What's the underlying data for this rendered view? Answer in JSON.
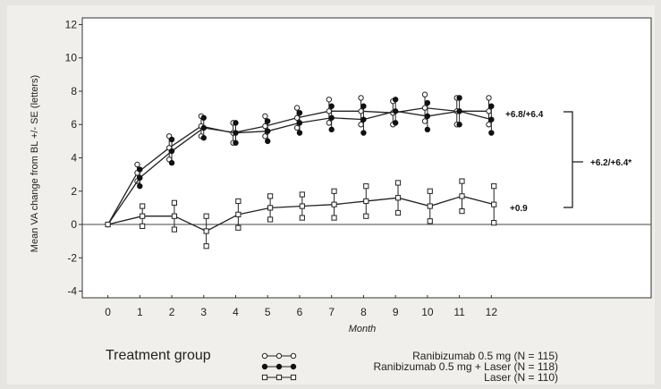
{
  "chart_data": {
    "type": "line",
    "title": "",
    "xlabel": "Month",
    "ylabel": "Mean VA change from BL +/- SE (letters)",
    "x": [
      0,
      1,
      2,
      3,
      4,
      5,
      6,
      7,
      8,
      9,
      10,
      11,
      12
    ],
    "x_ticks": [
      "0",
      "1",
      "2",
      "3",
      "4",
      "5",
      "6",
      "7",
      "8",
      "9",
      "10",
      "11",
      "12"
    ],
    "y_ticks": [
      "-4",
      "-2",
      "0",
      "2",
      "4",
      "6",
      "8",
      "10",
      "12"
    ],
    "xlim": [
      -0.8,
      17
    ],
    "ylim": [
      -4.4,
      12.4
    ],
    "grid": false,
    "series": [
      {
        "name": "Ranibizumab 0.5 mg (N = 115)",
        "marker": "open-circle",
        "values": [
          0,
          3.1,
          4.6,
          5.9,
          5.5,
          5.9,
          6.4,
          6.8,
          6.8,
          6.7,
          7.0,
          6.8,
          6.8
        ],
        "se": [
          0,
          0.5,
          0.7,
          0.6,
          0.6,
          0.6,
          0.6,
          0.7,
          0.8,
          0.7,
          0.8,
          0.8,
          0.8
        ]
      },
      {
        "name": "Ranibizumab 0.5 mg + Laser (N = 118)",
        "marker": "filled-circle",
        "values": [
          0,
          2.8,
          4.4,
          5.8,
          5.5,
          5.6,
          6.1,
          6.4,
          6.3,
          6.8,
          6.5,
          6.8,
          6.3
        ],
        "se": [
          0,
          0.5,
          0.7,
          0.6,
          0.6,
          0.6,
          0.6,
          0.7,
          0.8,
          0.7,
          0.8,
          0.8,
          0.8
        ]
      },
      {
        "name": "Laser (N = 110)",
        "marker": "open-square",
        "values": [
          0,
          0.5,
          0.5,
          -0.4,
          0.6,
          1.0,
          1.1,
          1.2,
          1.4,
          1.6,
          1.1,
          1.7,
          1.2
        ],
        "se": [
          0,
          0.6,
          0.8,
          0.9,
          0.8,
          0.7,
          0.7,
          0.8,
          0.9,
          0.9,
          0.9,
          0.9,
          1.1
        ]
      }
    ],
    "annotations": {
      "top": "+6.8/+6.4",
      "bottom": "+0.9",
      "bracket": "+6.2/+6.4*"
    },
    "legend": {
      "title": "Treatment group",
      "position": "bottom"
    }
  }
}
